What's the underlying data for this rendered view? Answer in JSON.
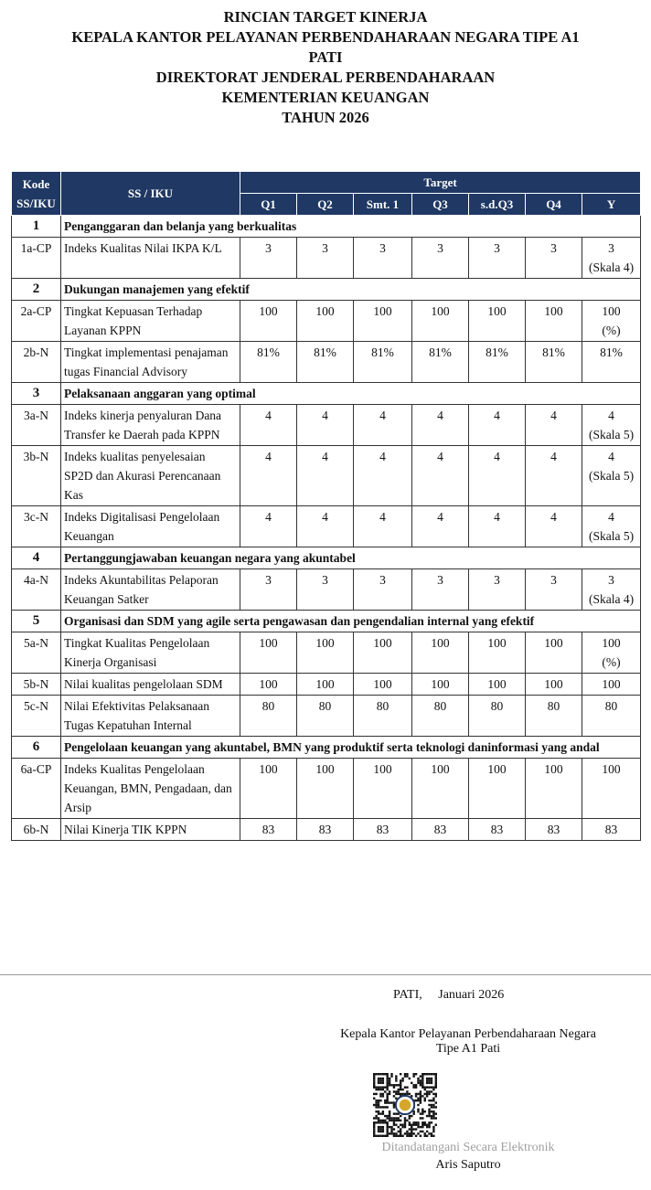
{
  "title": [
    "RINCIAN TARGET KINERJA",
    "KEPALA KANTOR PELAYANAN PERBENDAHARAAN NEGARA TIPE A1",
    "PATI",
    "DIREKTORAT JENDERAL PERBENDAHARAAN",
    "KEMENTERIAN KEUANGAN",
    "TAHUN 2026"
  ],
  "header": {
    "kode": "Kode SS/IKU",
    "ss": "SS / IKU",
    "target": "Target",
    "cols": [
      "Q1",
      "Q2",
      "Smt. 1",
      "Q3",
      "s.d.Q3",
      "Q4",
      "Y"
    ]
  },
  "header_color": "#1f3864",
  "rows": [
    {
      "type": "section",
      "code": "1",
      "label": "Penganggaran dan belanja yang berkualitas"
    },
    {
      "type": "iku",
      "code": "1a-CP",
      "label": "Indeks Kualitas Nilai IKPA K/L",
      "values": [
        "3",
        "3",
        "3",
        "3",
        "3",
        "3",
        "3"
      ],
      "note": "(Skala 4)"
    },
    {
      "type": "section",
      "code": "2",
      "label": "Dukungan manajemen yang efektif"
    },
    {
      "type": "iku",
      "code": "2a-CP",
      "label": "Tingkat Kepuasan Terhadap Layanan KPPN",
      "values": [
        "100",
        "100",
        "100",
        "100",
        "100",
        "100",
        "100"
      ],
      "note": "(%)"
    },
    {
      "type": "iku",
      "code": "2b-N",
      "label": "Tingkat implementasi penajaman tugas Financial Advisory",
      "values": [
        "81%",
        "81%",
        "81%",
        "81%",
        "81%",
        "81%",
        "81%"
      ]
    },
    {
      "type": "section",
      "code": "3",
      "label": "Pelaksanaan anggaran yang optimal"
    },
    {
      "type": "iku",
      "code": "3a-N",
      "label": "Indeks kinerja penyaluran Dana Transfer ke Daerah pada KPPN",
      "values": [
        "4",
        "4",
        "4",
        "4",
        "4",
        "4",
        "4"
      ],
      "note": "(Skala 5)"
    },
    {
      "type": "iku",
      "code": "3b-N",
      "label": "Indeks kualitas penyelesaian SP2D dan Akurasi Perencanaan Kas",
      "values": [
        "4",
        "4",
        "4",
        "4",
        "4",
        "4",
        "4"
      ],
      "note": "(Skala 5)"
    },
    {
      "type": "iku",
      "code": "3c-N",
      "label": "Indeks Digitalisasi Pengelolaan Keuangan",
      "values": [
        "4",
        "4",
        "4",
        "4",
        "4",
        "4",
        "4"
      ],
      "note": "(Skala 5)"
    },
    {
      "type": "section",
      "code": "4",
      "label": "Pertanggungjawaban keuangan negara yang akuntabel"
    },
    {
      "type": "iku",
      "code": "4a-N",
      "label": "Indeks Akuntabilitas Pelaporan Keuangan Satker",
      "values": [
        "3",
        "3",
        "3",
        "3",
        "3",
        "3",
        "3"
      ],
      "note": "(Skala 4)"
    },
    {
      "type": "section",
      "code": "5",
      "label": "Organisasi dan SDM yang agile serta pengawasan dan pengendalian internal yang efektif"
    },
    {
      "type": "iku",
      "code": "5a-N",
      "label": "Tingkat Kualitas Pengelolaan Kinerja Organisasi",
      "values": [
        "100",
        "100",
        "100",
        "100",
        "100",
        "100",
        "100"
      ],
      "note": "(%)"
    },
    {
      "type": "iku",
      "code": "5b-N",
      "label": "Nilai kualitas pengelolaan SDM",
      "values": [
        "100",
        "100",
        "100",
        "100",
        "100",
        "100",
        "100"
      ]
    },
    {
      "type": "iku",
      "code": "5c-N",
      "label": "Nilai Efektivitas Pelaksanaan Tugas Kepatuhan Internal",
      "values": [
        "80",
        "80",
        "80",
        "80",
        "80",
        "80",
        "80"
      ]
    },
    {
      "type": "section",
      "code": "6",
      "label": "Pengelolaan keuangan yang akuntabel, BMN yang produktif serta teknologi daninformasi yang andal"
    },
    {
      "type": "iku",
      "code": "6a-CP",
      "label": "Indeks Kualitas Pengelolaan Keuangan, BMN, Pengadaan, dan Arsip",
      "values": [
        "100",
        "100",
        "100",
        "100",
        "100",
        "100",
        "100"
      ]
    },
    {
      "type": "iku",
      "code": "6b-N",
      "label": "Nilai Kinerja TIK KPPN",
      "values": [
        "83",
        "83",
        "83",
        "83",
        "83",
        "83",
        "83"
      ]
    }
  ],
  "footer": {
    "place_date": "PATI,     Januari 2026",
    "position1": "Kepala Kantor Pelayanan Perbendaharaan Negara",
    "position2": "Tipe A1 Pati",
    "signed": "Ditandatangani Secara Elektronik",
    "name": "Aris Saputro"
  }
}
